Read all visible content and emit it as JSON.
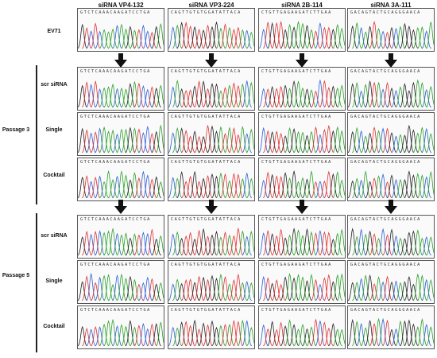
{
  "columns": [
    {
      "title": "siRNA VP4-132",
      "seq": "GTCTCAAACAAGATCCTGA"
    },
    {
      "title": "siRNA VP3-224",
      "seq": "CAGTTGTGTGGATATTACA"
    },
    {
      "title": "siRNA 2B-114",
      "seq": "CTGTTGAGAAGATCTTGAA"
    },
    {
      "title": "siRNA 3A-111",
      "seq": "GACAGTACTGCAGGGAACA"
    }
  ],
  "rows": [
    {
      "label": "EV71"
    },
    {
      "label": "scr siRNA"
    },
    {
      "label": "Single"
    },
    {
      "label": "Cocktail"
    },
    {
      "label": "scr siRNA"
    },
    {
      "label": "Single"
    },
    {
      "label": "Cocktail"
    }
  ],
  "passages": [
    {
      "label": "Passage 3"
    },
    {
      "label": "Passage 5"
    }
  ],
  "colors": {
    "A": "#2aa02a",
    "C": "#2a5fd6",
    "G": "#222222",
    "T": "#e03030",
    "mutation_mark": "#c0392b",
    "arrow": "#111111"
  }
}
